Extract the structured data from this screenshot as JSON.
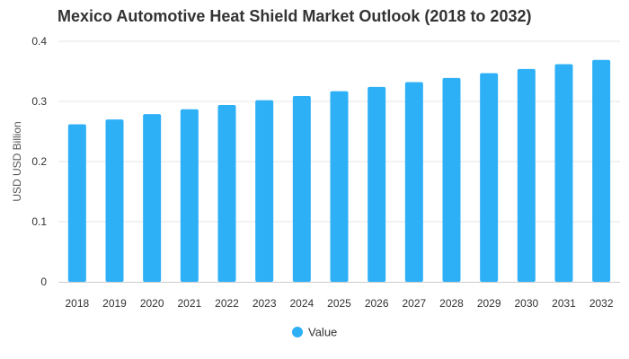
{
  "chart_data": {
    "type": "bar",
    "title": "Mexico Automotive Heat Shield Market Outlook (2018 to 2032)",
    "ylabel": "USD USD Billion",
    "xlabel": "",
    "ylim": [
      0,
      0.4
    ],
    "yticks": [
      0,
      0.1,
      0.2,
      0.3,
      0.4
    ],
    "ytick_labels": [
      "0",
      "0.1",
      "0.2",
      "0.3",
      "0.4"
    ],
    "grid": true,
    "legend_position": "bottom-center",
    "categories": [
      "2018",
      "2019",
      "2020",
      "2021",
      "2022",
      "2023",
      "2024",
      "2025",
      "2026",
      "2027",
      "2028",
      "2029",
      "2030",
      "2031",
      "2032"
    ],
    "series": [
      {
        "name": "Value",
        "color": "#2eb0f7",
        "values": [
          0.262,
          0.27,
          0.279,
          0.287,
          0.294,
          0.302,
          0.309,
          0.317,
          0.324,
          0.332,
          0.339,
          0.347,
          0.354,
          0.362,
          0.369
        ]
      }
    ]
  }
}
